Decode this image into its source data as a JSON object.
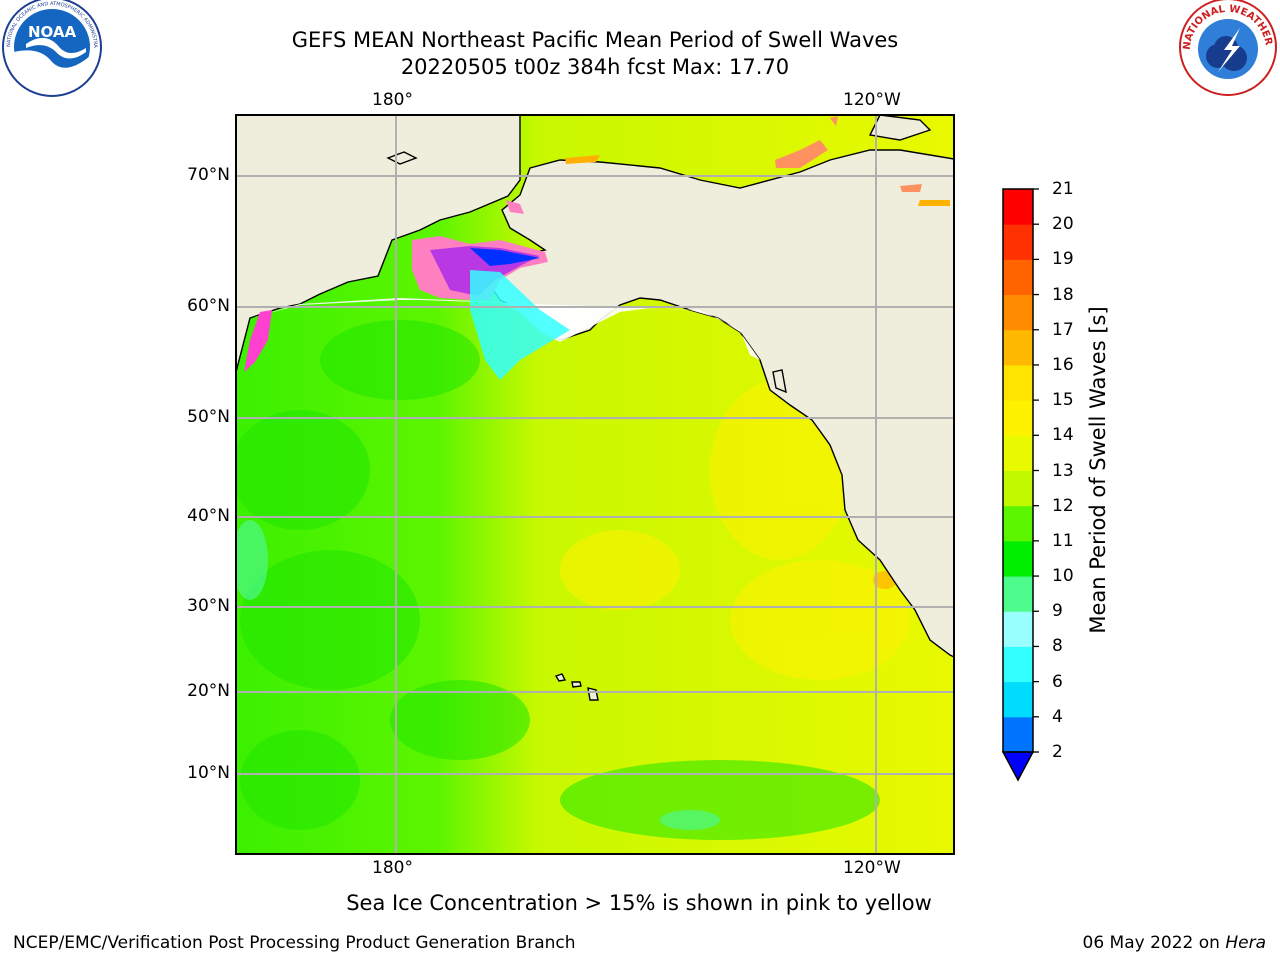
{
  "header": {
    "title_line1": "GEFS MEAN Northeast Pacific Mean Period of Swell Waves",
    "title_line2": "20220505 t00z 384h fcst   Max: 17.70"
  },
  "logos": {
    "left": "NOAA",
    "left_ring_text": "NATIONAL OCEANIC AND ATMOSPHERIC ADMINISTRATION · U.S. DEPARTMENT OF COMMERCE",
    "right_ring_text": "NATIONAL WEATHER SERVICE"
  },
  "map": {
    "lon_labels": [
      "180°",
      "120°W"
    ],
    "lat_labels": [
      "70°N",
      "60°N",
      "50°N",
      "40°N",
      "30°N",
      "20°N",
      "10°N"
    ],
    "ocean_color": "#d2f51f",
    "land_color": "#efeedd"
  },
  "colorbar": {
    "title": "Mean Period of Swell Waves [s]",
    "ticks": [
      "2",
      "4",
      "6",
      "8",
      "9",
      "10",
      "11",
      "12",
      "13",
      "14",
      "15",
      "16",
      "17",
      "18",
      "19",
      "20",
      "21"
    ],
    "colors": [
      "#0073ff",
      "#00dcfe",
      "#33ffff",
      "#99ffff",
      "#4dfc8c",
      "#00ef00",
      "#5cf700",
      "#c0f900",
      "#e9f900",
      "#fef200",
      "#fee400",
      "#ffb900",
      "#ff8c00",
      "#ff6400",
      "#ff3100",
      "#ff0000"
    ],
    "extend_color": "#0000ff"
  },
  "subcaption": "Sea Ice Concentration > 15% is shown in pink to yellow",
  "footer": {
    "left": "NCEP/EMC/Verification Post Processing Product Generation Branch",
    "right_date": "06 May 2022 on ",
    "right_host": "Hera"
  }
}
